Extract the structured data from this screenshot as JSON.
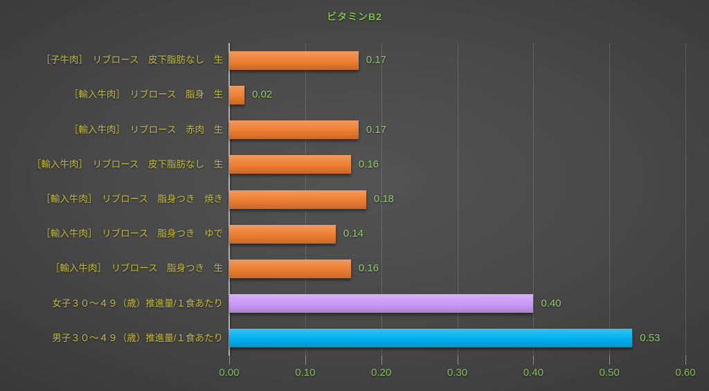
{
  "chart_data": {
    "type": "bar",
    "orientation": "horizontal",
    "title": "ビタミンB2",
    "categories": [
      "［子牛肉］　リブロース　皮下脂肪なし　生",
      "［輸入牛肉］　リブロース　脂身　生",
      "［輸入牛肉］　リブロース　赤肉　生",
      "［輸入牛肉］　リブロース　皮下脂肪なし　生",
      "［輸入牛肉］　リブロース　脂身つき　焼き",
      "［輸入牛肉］　リブロース　脂身つき　ゆで",
      "［輸入牛肉］　リブロース　脂身つき　生",
      "女子３０～４９（歳）推進量/１食あたり",
      "男子３０～４９（歳）推進量/１食あたり"
    ],
    "values": [
      0.17,
      0.02,
      0.17,
      0.16,
      0.18,
      0.14,
      0.16,
      0.4,
      0.53
    ],
    "value_labels": [
      "0.17",
      "0.02",
      "0.17",
      "0.16",
      "0.18",
      "0.14",
      "0.16",
      "0.40",
      "0.53"
    ],
    "bar_colors": [
      "#ed7d31",
      "#ed7d31",
      "#ed7d31",
      "#ed7d31",
      "#ed7d31",
      "#ed7d31",
      "#ed7d31",
      "#c998f4",
      "#00b0f0"
    ],
    "x_ticks": [
      "0.00",
      "0.10",
      "0.20",
      "0.30",
      "0.40",
      "0.50",
      "0.60"
    ],
    "xlim": [
      0,
      0.6
    ],
    "grid": true,
    "legend_position": "none",
    "colors": {
      "title": "#7cc342",
      "category_labels": "#c2ba3a",
      "value_labels": "#8cc963",
      "axis_tick_labels": "#7fc255",
      "orange_series": "#ed7d31",
      "purple_series": "#c998f4",
      "blue_series": "#00b0f0"
    }
  }
}
